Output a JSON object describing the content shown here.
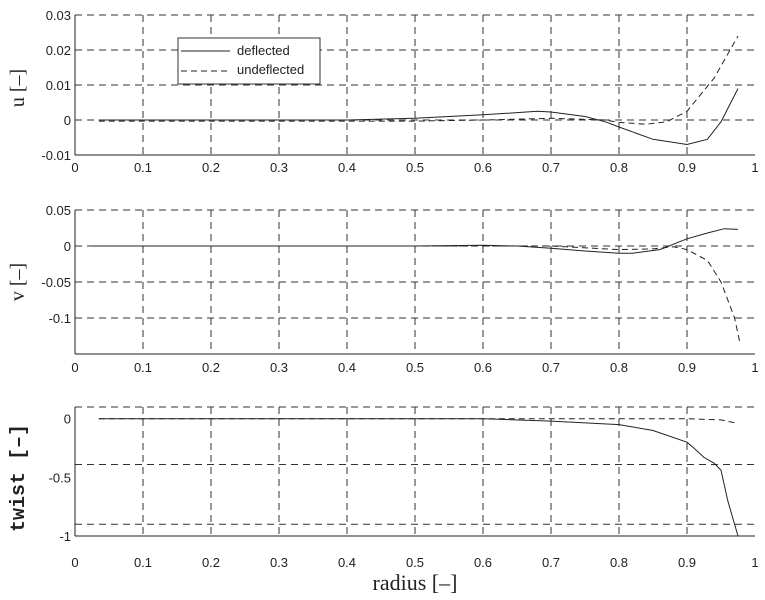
{
  "chart_data": [
    {
      "type": "line",
      "ylabel": "u  [–]",
      "xlabel": "",
      "xlim": [
        0,
        1
      ],
      "ylim": [
        -0.01,
        0.03
      ],
      "xticks": [
        "0",
        "0.1",
        "0.2",
        "0.3",
        "0.4",
        "0.5",
        "0.6",
        "0.7",
        "0.8",
        "0.9",
        "1"
      ],
      "yticks": [
        {
          "v": 0.03,
          "label": "0.03"
        },
        {
          "v": 0.02,
          "label": "0.02"
        },
        {
          "v": 0.01,
          "label": "0.01"
        },
        {
          "v": 0,
          "label": "0"
        },
        {
          "v": -0.01,
          "label": "-0.01"
        }
      ],
      "grid_y": [
        0.03,
        0.02,
        0.01,
        0,
        -0.01
      ],
      "grid": true,
      "legend": {
        "placement": "top-left",
        "entries": [
          "deflected",
          "undeflected"
        ]
      },
      "series": [
        {
          "name": "deflected",
          "style": "solid",
          "x": [
            0.035,
            0.4,
            0.5,
            0.6,
            0.68,
            0.7,
            0.75,
            0.78,
            0.8,
            0.85,
            0.9,
            0.93,
            0.95,
            0.975
          ],
          "y": [
            0,
            0,
            0.0005,
            0.0015,
            0.0025,
            0.0023,
            0.001,
            -0.0005,
            -0.002,
            -0.0055,
            -0.007,
            -0.0055,
            -0.0005,
            0.009
          ]
        },
        {
          "name": "undeflected",
          "style": "dashed",
          "x": [
            0.035,
            0.4,
            0.5,
            0.6,
            0.7,
            0.78,
            0.8,
            0.84,
            0.87,
            0.9,
            0.94,
            0.975
          ],
          "y": [
            -0.0003,
            -0.0003,
            -0.0003,
            0,
            0.0005,
            0,
            -0.0007,
            -0.0012,
            -0.0005,
            0.0025,
            0.012,
            0.024
          ]
        }
      ]
    },
    {
      "type": "line",
      "ylabel": "v  [–]",
      "xlabel": "",
      "xlim": [
        0,
        1
      ],
      "ylim": [
        -0.15,
        0.05
      ],
      "xticks": [
        "0",
        "0.1",
        "0.2",
        "0.3",
        "0.4",
        "0.5",
        "0.6",
        "0.7",
        "0.8",
        "0.9",
        "1"
      ],
      "yticks": [
        {
          "v": 0.05,
          "label": "0.05"
        },
        {
          "v": 0,
          "label": "0"
        },
        {
          "v": -0.05,
          "label": "-0.05"
        },
        {
          "v": -0.1,
          "label": "-0.1"
        }
      ],
      "grid_y": [
        0.05,
        0,
        -0.05,
        -0.1
      ],
      "grid": true,
      "series": [
        {
          "name": "deflected",
          "style": "solid",
          "x": [
            0.025,
            0.5,
            0.6,
            0.65,
            0.7,
            0.75,
            0.8,
            0.82,
            0.86,
            0.9,
            0.93,
            0.955,
            0.975
          ],
          "y": [
            0,
            0,
            0.001,
            0,
            -0.003,
            -0.007,
            -0.01,
            -0.01,
            -0.005,
            0.01,
            0.018,
            0.024,
            0.023
          ]
        },
        {
          "name": "undeflected",
          "style": "dashed",
          "x": [
            0.025,
            0.7,
            0.8,
            0.85,
            0.88,
            0.9,
            0.93,
            0.95,
            0.97,
            0.978
          ],
          "y": [
            0,
            0,
            -0.005,
            -0.004,
            -0.001,
            -0.005,
            -0.02,
            -0.05,
            -0.1,
            -0.135
          ]
        }
      ]
    },
    {
      "type": "line",
      "ylabel": "twist [–]",
      "xlabel": "radius [–]",
      "xlim": [
        0,
        1
      ],
      "ylim": [
        -1,
        0.1
      ],
      "xticks": [
        "0",
        "0.1",
        "0.2",
        "0.3",
        "0.4",
        "0.5",
        "0.6",
        "0.7",
        "0.8",
        "0.9",
        "1"
      ],
      "yticks": [
        {
          "v": 0,
          "label": "0"
        },
        {
          "v": -0.5,
          "label": "-0.5"
        },
        {
          "v": -1,
          "label": "-1"
        }
      ],
      "grid_y": [
        0.1,
        -0.39,
        -0.9
      ],
      "grid": true,
      "series": [
        {
          "name": "deflected",
          "style": "solid",
          "x": [
            0.035,
            0.6,
            0.7,
            0.8,
            0.85,
            0.9,
            0.91,
            0.925,
            0.94,
            0.95,
            0.96,
            0.975
          ],
          "y": [
            0,
            0,
            -0.02,
            -0.05,
            -0.1,
            -0.2,
            -0.25,
            -0.33,
            -0.38,
            -0.44,
            -0.7,
            -1.0
          ]
        },
        {
          "name": "undeflected",
          "style": "dashed",
          "x": [
            0.035,
            0.9,
            0.95,
            0.975
          ],
          "y": [
            0,
            0,
            -0.01,
            -0.04
          ]
        }
      ]
    }
  ],
  "colors": {
    "line": "#222222",
    "grid": "#333333"
  }
}
